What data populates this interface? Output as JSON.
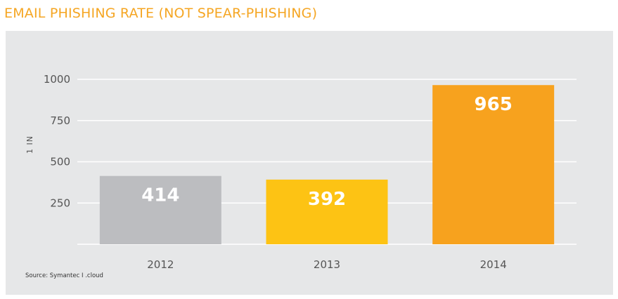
{
  "chart_data": {
    "type": "bar",
    "title": "EMAIL PHISHING RATE (NOT SPEAR-PHISHING)",
    "ylabel": "1 IN",
    "xlabel": "",
    "categories": [
      "2012",
      "2013",
      "2014"
    ],
    "values": [
      414,
      392,
      965
    ],
    "ylim": [
      0,
      1000
    ],
    "yticks": [
      250,
      500,
      750,
      1000
    ],
    "grid": true,
    "colors": [
      "#bcbdc0",
      "#fdc314",
      "#f7a21e"
    ],
    "gridline_color": "#ffffff",
    "value_label_color": "#ffffff",
    "title_color": "#f5a623",
    "panel_background": "#e6e7e8"
  },
  "source": "Source: Symantec  I  .cloud"
}
